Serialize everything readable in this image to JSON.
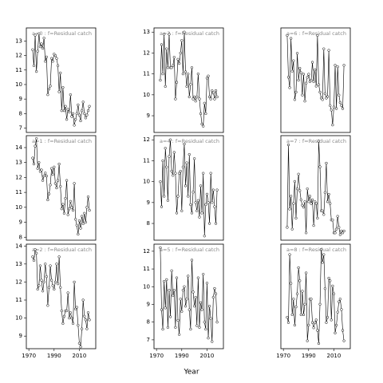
{
  "chart_data": {
    "type": "line",
    "xlabel": "Year",
    "x": [
      1973,
      1974,
      1975,
      1976,
      1977,
      1978,
      1979,
      1980,
      1981,
      1982,
      1983,
      1984,
      1985,
      1986,
      1987,
      1988,
      1989,
      1990,
      1991,
      1992,
      1993,
      1994,
      1995,
      1996,
      1997,
      1998,
      1999,
      2000,
      2001,
      2002,
      2003,
      2004,
      2005,
      2006,
      2007,
      2008,
      2009,
      2010,
      2011,
      2012,
      2013,
      2014,
      2015,
      2016,
      2017,
      2018
    ],
    "xlim": [
      1968,
      2023
    ],
    "xticks": [
      1970,
      1990,
      2010
    ],
    "panels": [
      {
        "title": "a=0 : f=Residual catch",
        "ylim": [
          6.7,
          13.9
        ],
        "yticks": [
          7,
          8,
          9,
          10,
          11,
          12,
          13
        ],
        "values": [
          12.4,
          11.3,
          13.4,
          10.9,
          12.3,
          13.5,
          12.6,
          12.8,
          12.5,
          13.2,
          11.6,
          11.9,
          9.3,
          9.7,
          9.9,
          11.8,
          11.6,
          12.1,
          12.0,
          11.8,
          11.3,
          9.5,
          10.8,
          8.2,
          9.8,
          8.2,
          8.5,
          7.6,
          8.3,
          8.1,
          9.3,
          7.8,
          8.0,
          7.2,
          7.6,
          8.0,
          8.6,
          7.9,
          7.5,
          8.2,
          8.8,
          8.0,
          7.7,
          7.9,
          8.2,
          8.5
        ]
      },
      {
        "title": "a=1 : f=Residual catch",
        "ylim": [
          7.8,
          14.8
        ],
        "yticks": [
          8,
          9,
          10,
          11,
          12,
          13,
          14
        ],
        "values": [
          13.3,
          12.9,
          14.1,
          14.6,
          12.6,
          13.0,
          12.4,
          12.5,
          11.8,
          12.1,
          12.3,
          12.1,
          10.5,
          10.9,
          11.5,
          12.6,
          12.2,
          12.7,
          11.6,
          11.3,
          11.8,
          12.9,
          11.4,
          9.9,
          10.2,
          9.6,
          10.6,
          11.8,
          9.5,
          9.9,
          10.4,
          10.0,
          9.8,
          11.6,
          9.2,
          8.8,
          8.2,
          9.1,
          8.6,
          9.4,
          8.9,
          9.6,
          9.0,
          10.0,
          10.7,
          9.8
        ]
      },
      {
        "title": "a=2 : f=Residual catch",
        "ylim": [
          8.3,
          14.1
        ],
        "yticks": [
          9,
          10,
          11,
          12,
          13,
          14
        ],
        "values": [
          13.4,
          13.2,
          13.8,
          13.6,
          11.6,
          11.8,
          12.9,
          12.1,
          11.5,
          12.0,
          13.0,
          12.3,
          10.7,
          11.7,
          12.9,
          12.1,
          11.8,
          11.6,
          12.0,
          13.0,
          11.9,
          13.4,
          11.7,
          10.4,
          9.7,
          10.1,
          10.4,
          10.4,
          11.4,
          10.0,
          10.3,
          10.0,
          9.7,
          12.0,
          10.5,
          10.6,
          9.6,
          8.6,
          8.4,
          9.4,
          11.0,
          10.1,
          9.9,
          9.4,
          10.3,
          9.9
        ]
      },
      {
        "title": "a=3 : f=Residual catch",
        "ylim": [
          8.2,
          13.2
        ],
        "yticks": [
          9,
          10,
          11,
          12,
          13
        ],
        "values": [
          10.7,
          12.4,
          11.0,
          12.9,
          10.4,
          12.2,
          11.3,
          12.9,
          11.3,
          11.3,
          11.4,
          11.8,
          9.8,
          10.6,
          11.7,
          11.5,
          12.0,
          12.6,
          11.0,
          13.0,
          11.1,
          10.4,
          11.0,
          9.9,
          10.5,
          11.3,
          9.8,
          9.9,
          9.7,
          9.9,
          11.0,
          9.8,
          9.1,
          8.6,
          8.5,
          9.6,
          9.1,
          10.8,
          10.9,
          9.9,
          9.8,
          10.2,
          10.1,
          9.8,
          10.2,
          9.9
        ]
      },
      {
        "title": "a=4 : f=Residual catch",
        "ylim": [
          7.2,
          12.2
        ],
        "yticks": [
          8,
          9,
          10,
          11,
          12
        ],
        "values": [
          10.0,
          8.8,
          11.0,
          9.3,
          11.6,
          10.7,
          9.1,
          11.2,
          12.0,
          10.5,
          10.3,
          11.4,
          10.4,
          8.5,
          9.3,
          10.4,
          10.5,
          8.6,
          10.7,
          11.8,
          9.8,
          10.9,
          9.3,
          11.3,
          8.9,
          8.5,
          9.5,
          11.1,
          9.0,
          8.6,
          9.1,
          8.3,
          9.8,
          8.5,
          10.4,
          7.4,
          8.9,
          9.4,
          9.0,
          8.0,
          10.4,
          9.0,
          9.6,
          8.8,
          8.0,
          9.6
        ]
      },
      {
        "title": "a=5 : f=Residual catch",
        "ylim": [
          6.5,
          12.4
        ],
        "yticks": [
          7,
          8,
          9,
          10,
          11,
          12
        ],
        "values": [
          12.2,
          8.7,
          7.6,
          10.3,
          8.8,
          10.4,
          7.7,
          9.8,
          8.3,
          10.9,
          9.5,
          9.8,
          7.7,
          10.5,
          8.1,
          7.3,
          9.3,
          8.6,
          9.8,
          10.0,
          8.9,
          9.3,
          10.6,
          8.7,
          7.6,
          11.5,
          9.7,
          8.9,
          9.4,
          7.8,
          10.5,
          7.7,
          9.1,
          8.7,
          10.7,
          8.0,
          7.6,
          10.2,
          7.1,
          8.9,
          8.2,
          6.9,
          9.4,
          9.9,
          9.6,
          8.0
        ]
      },
      {
        "title": "a=6 : f=Residual catch",
        "ylim": [
          4.5,
          11.5
        ],
        "values": [
          11.0,
          8.2,
          7.5,
          10.8,
          8.6,
          9.3,
          6.7,
          7.2,
          9.8,
          8.0,
          8.8,
          8.5,
          7.0,
          8.4,
          6.6,
          7.8,
          8.2,
          8.4,
          7.9,
          8.0,
          9.2,
          7.9,
          8.7,
          7.6,
          11.0,
          7.7,
          7.2,
          6.8,
          6.7,
          10.1,
          7.1,
          6.8,
          6.9,
          10.0,
          6.3,
          6.0,
          5.0,
          6.2,
          9.0,
          6.1,
          8.9,
          7.0,
          6.5,
          6.3,
          6.1,
          9.0
        ]
      },
      {
        "title": "a=7 : f=Residual catch",
        "ylim": [
          4.8,
          10.5
        ],
        "values": [
          5.5,
          10.0,
          6.5,
          7.2,
          5.4,
          6.8,
          8.0,
          6.0,
          7.6,
          8.4,
          7.5,
          7.0,
          6.7,
          6.6,
          6.9,
          5.2,
          7.6,
          6.9,
          7.2,
          6.8,
          7.0,
          5.6,
          6.9,
          6.8,
          6.0,
          10.2,
          8.8,
          6.4,
          6.4,
          6.2,
          7.4,
          9.0,
          6.9,
          7.3,
          6.8,
          5.9,
          5.9,
          5.2,
          5.2,
          5.4,
          6.1,
          5.5,
          5.1,
          5.3,
          5.2,
          5.3
        ]
      },
      {
        "title": "a=8 : f=Residual catch",
        "ylim": [
          5,
          9
        ],
        "values": [
          6.2,
          6.0,
          8.6,
          7.5,
          6.3,
          6.9,
          5.9,
          6.6,
          7.1,
          8.1,
          7.6,
          6.3,
          7.2,
          6.3,
          6.7,
          7.9,
          5.3,
          5.9,
          6.9,
          6.9,
          6.0,
          5.8,
          6.0,
          6.1,
          5.7,
          5.2,
          6.7,
          8.8,
          8.3,
          8.6,
          7.3,
          6.0,
          6.2,
          7.7,
          7.6,
          6.1,
          7.4,
          7.1,
          5.6,
          5.9,
          6.4,
          6.8,
          6.9,
          6.5,
          5.7,
          5.3
        ]
      }
    ]
  }
}
